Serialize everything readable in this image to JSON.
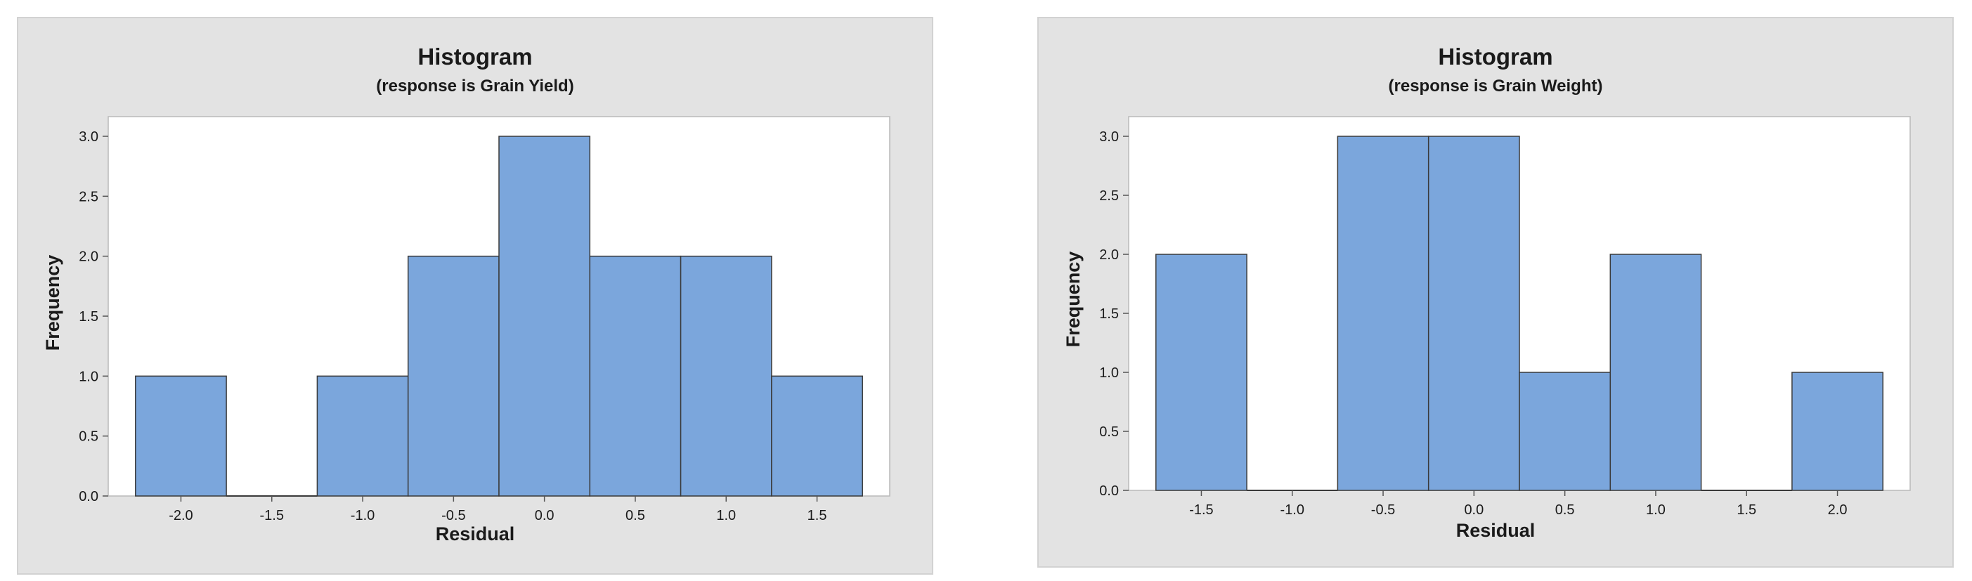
{
  "chart_data": [
    {
      "type": "bar",
      "title": "Histogram",
      "subtitle": "(response is Grain Yield)",
      "xlabel": "Residual",
      "ylabel": "Frequency",
      "bin_width": 0.5,
      "bins": [
        {
          "x_start": -2.25,
          "x_end": -1.75,
          "frequency": 1
        },
        {
          "x_start": -1.75,
          "x_end": -1.25,
          "frequency": 0
        },
        {
          "x_start": -1.25,
          "x_end": -0.75,
          "frequency": 1
        },
        {
          "x_start": -0.75,
          "x_end": -0.25,
          "frequency": 2
        },
        {
          "x_start": -0.25,
          "x_end": 0.25,
          "frequency": 3
        },
        {
          "x_start": 0.25,
          "x_end": 0.75,
          "frequency": 2
        },
        {
          "x_start": 0.75,
          "x_end": 1.25,
          "frequency": 2
        },
        {
          "x_start": 1.25,
          "x_end": 1.75,
          "frequency": 1
        }
      ],
      "xticks": [
        "-2.0",
        "-1.5",
        "-1.0",
        "-0.5",
        "0.0",
        "0.5",
        "1.0",
        "1.5"
      ],
      "yticks": [
        "0.0",
        "0.5",
        "1.0",
        "1.5",
        "2.0",
        "2.5",
        "3.0"
      ],
      "xlim": [
        -2.4,
        1.9
      ],
      "ylim": [
        0,
        3.0
      ],
      "grid": false,
      "colors": {
        "bar": "#7ba6dc",
        "background": "#e3e3e3"
      }
    },
    {
      "type": "bar",
      "title": "Histogram",
      "subtitle": "(response is Grain Weight)",
      "xlabel": "Residual",
      "ylabel": "Frequency",
      "bin_width": 0.5,
      "bins": [
        {
          "x_start": -1.75,
          "x_end": -1.25,
          "frequency": 2
        },
        {
          "x_start": -1.25,
          "x_end": -0.75,
          "frequency": 0
        },
        {
          "x_start": -0.75,
          "x_end": -0.25,
          "frequency": 3
        },
        {
          "x_start": -0.25,
          "x_end": 0.25,
          "frequency": 3
        },
        {
          "x_start": 0.25,
          "x_end": 0.75,
          "frequency": 1
        },
        {
          "x_start": 0.75,
          "x_end": 1.25,
          "frequency": 2
        },
        {
          "x_start": 1.25,
          "x_end": 1.75,
          "frequency": 0
        },
        {
          "x_start": 1.75,
          "x_end": 2.25,
          "frequency": 1
        }
      ],
      "xticks": [
        "-1.5",
        "-1.0",
        "-0.5",
        "0.0",
        "0.5",
        "1.0",
        "1.5",
        "2.0"
      ],
      "yticks": [
        "0.0",
        "0.5",
        "1.0",
        "1.5",
        "2.0",
        "2.5",
        "3.0"
      ],
      "xlim": [
        -1.9,
        2.4
      ],
      "ylim": [
        0,
        3.0
      ],
      "grid": false,
      "colors": {
        "bar": "#7ba6dc",
        "background": "#e3e3e3"
      }
    }
  ]
}
